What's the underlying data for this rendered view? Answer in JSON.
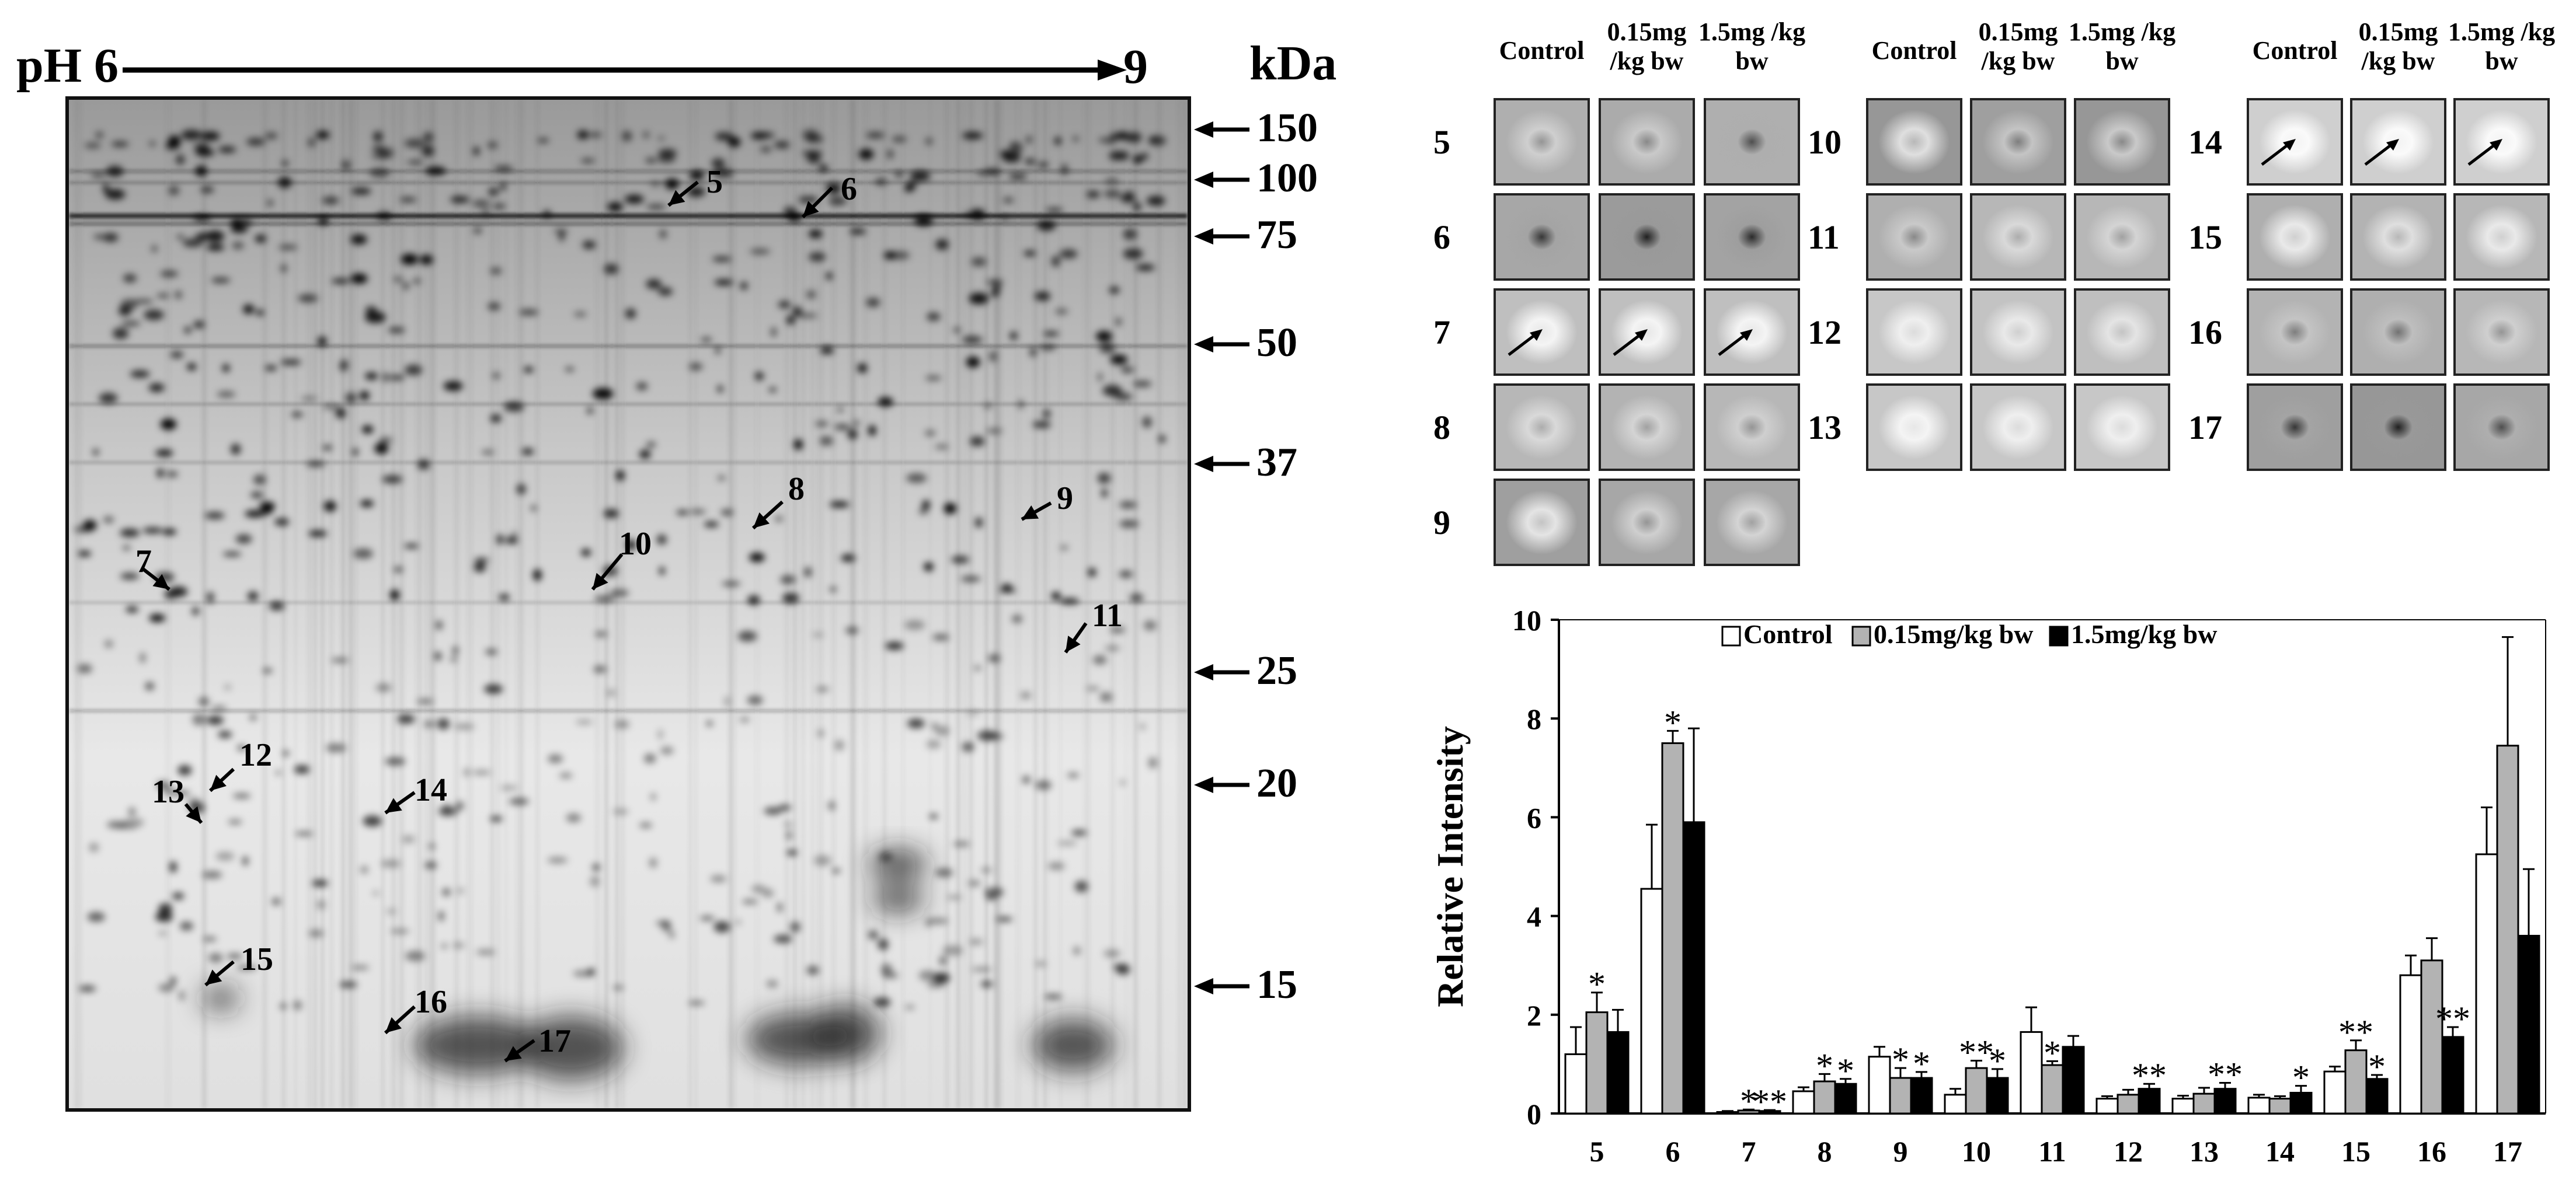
{
  "gel": {
    "ph_start": "pH 6",
    "ph_end": "9",
    "kda_label": "kDa",
    "markers": [
      {
        "label": "150",
        "kda": 150
      },
      {
        "label": "100",
        "kda": 100
      },
      {
        "label": "75",
        "kda": 75
      },
      {
        "label": "50",
        "kda": 50
      },
      {
        "label": "37",
        "kda": 37
      },
      {
        "label": "25",
        "kda": 25
      },
      {
        "label": "20",
        "kda": 20
      },
      {
        "label": "15",
        "kda": 15
      }
    ],
    "spot_labels": [
      "5",
      "6",
      "7",
      "8",
      "9",
      "10",
      "11",
      "12",
      "13",
      "14",
      "15",
      "16",
      "17"
    ]
  },
  "insets": {
    "headers": [
      "Control",
      "0.15mg /kg bw",
      "1.5mg /kg bw"
    ],
    "groups": [
      {
        "rows": [
          "5",
          "6",
          "7",
          "8",
          "9"
        ]
      },
      {
        "rows": [
          "10",
          "11",
          "12",
          "13"
        ]
      },
      {
        "rows": [
          "14",
          "15",
          "16",
          "17"
        ]
      }
    ],
    "arrow_spots": [
      "7",
      "14"
    ]
  },
  "chart_data": {
    "type": "bar",
    "ylabel": "Relative Intensity",
    "xlabel": "",
    "ylim": [
      0,
      10
    ],
    "yticks": [
      0,
      2,
      4,
      6,
      8,
      10
    ],
    "legend_position": "top-center",
    "categories": [
      "5",
      "6",
      "7",
      "8",
      "9",
      "10",
      "11",
      "12",
      "13",
      "14",
      "15",
      "16",
      "17"
    ],
    "series": [
      {
        "name": "Control",
        "color": "#ffffff",
        "values": [
          1.2,
          4.55,
          0.03,
          0.45,
          1.15,
          0.38,
          1.65,
          0.3,
          0.3,
          0.32,
          0.85,
          2.8,
          5.25
        ],
        "errors": [
          0.55,
          1.3,
          0.02,
          0.08,
          0.2,
          0.12,
          0.5,
          0.05,
          0.06,
          0.06,
          0.1,
          0.4,
          0.95
        ]
      },
      {
        "name": "0.15mg/kg bw",
        "color": "#b3b3b3",
        "values": [
          2.05,
          7.5,
          0.06,
          0.65,
          0.72,
          0.92,
          0.98,
          0.38,
          0.4,
          0.3,
          1.28,
          3.1,
          7.45
        ],
        "errors": [
          0.4,
          0.25,
          0.02,
          0.15,
          0.2,
          0.15,
          0.08,
          0.1,
          0.12,
          0.05,
          0.2,
          0.45,
          2.2
        ]
      },
      {
        "name": "1.5mg/kg bw",
        "color": "#000000",
        "values": [
          1.65,
          5.9,
          0.05,
          0.6,
          0.72,
          0.72,
          1.35,
          0.5,
          0.5,
          0.42,
          0.7,
          1.55,
          3.6
        ],
        "errors": [
          0.45,
          1.9,
          0.02,
          0.1,
          0.12,
          0.18,
          0.22,
          0.1,
          0.12,
          0.14,
          0.08,
          0.2,
          1.35
        ]
      }
    ],
    "significance": [
      {
        "category": "5",
        "series": 1,
        "label": "*"
      },
      {
        "category": "6",
        "series": 1,
        "label": "*"
      },
      {
        "category": "7",
        "series": 1,
        "label": "*"
      },
      {
        "category": "7",
        "series": 2,
        "label": "**"
      },
      {
        "category": "8",
        "series": 1,
        "label": "*"
      },
      {
        "category": "8",
        "series": 2,
        "label": "*"
      },
      {
        "category": "9",
        "series": 1,
        "label": "*"
      },
      {
        "category": "9",
        "series": 2,
        "label": "*"
      },
      {
        "category": "10",
        "series": 1,
        "label": "**"
      },
      {
        "category": "10",
        "series": 2,
        "label": "*"
      },
      {
        "category": "11",
        "series": 1,
        "label": "*"
      },
      {
        "category": "12",
        "series": 2,
        "label": "**"
      },
      {
        "category": "13",
        "series": 2,
        "label": "**"
      },
      {
        "category": "14",
        "series": 2,
        "label": "*"
      },
      {
        "category": "15",
        "series": 1,
        "label": "**"
      },
      {
        "category": "15",
        "series": 2,
        "label": "*"
      },
      {
        "category": "16",
        "series": 2,
        "label": "**"
      }
    ]
  }
}
